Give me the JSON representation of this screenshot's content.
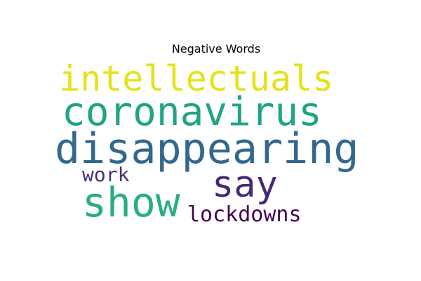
{
  "title": "Negative Words",
  "words": [
    {
      "text": "intellectuals",
      "color": "#e2e418"
    },
    {
      "text": "coronavirus",
      "color": "#20a486"
    },
    {
      "text": "disappearing",
      "color": "#31688e"
    },
    {
      "text": "say",
      "color": "#482878"
    },
    {
      "text": "work",
      "color": "#46337e"
    },
    {
      "text": "show",
      "color": "#29af7f"
    },
    {
      "text": "lockdowns",
      "color": "#440154"
    }
  ]
}
